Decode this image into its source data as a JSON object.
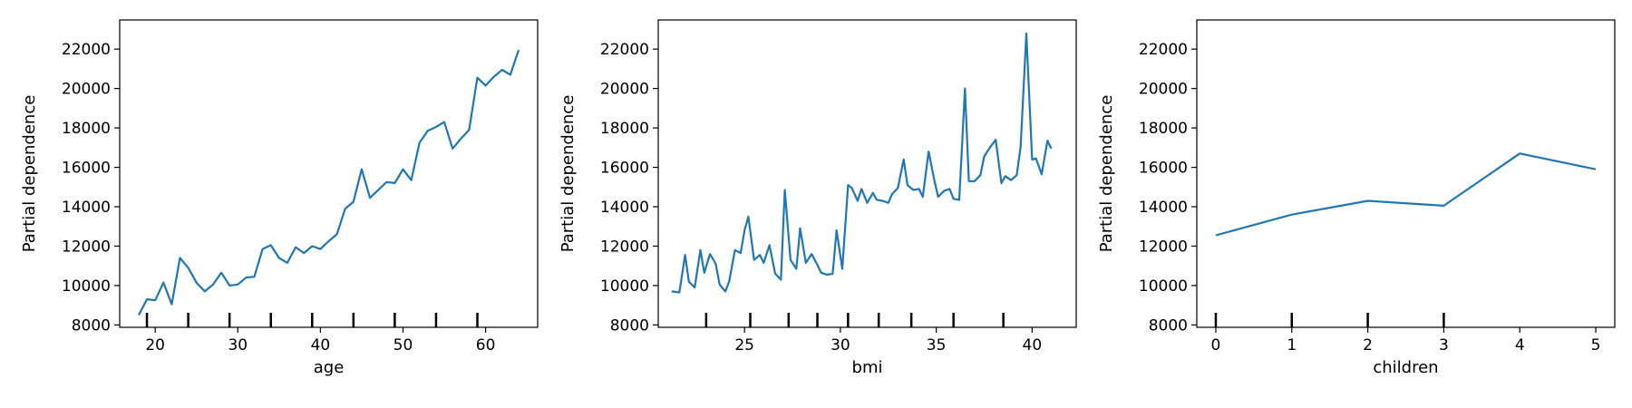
{
  "chart_data": [
    {
      "type": "line",
      "xlabel": "age",
      "ylabel": "Partial dependence",
      "xlim": [
        15.7,
        66.3
      ],
      "ylim": [
        7880,
        23480
      ],
      "xticks": [
        "20",
        "30",
        "40",
        "50",
        "60"
      ],
      "yticks": [
        "8000",
        "10000",
        "12000",
        "14000",
        "16000",
        "18000",
        "20000",
        "22000"
      ],
      "line_color": "#1f77b4",
      "deciles": [
        19,
        24,
        29,
        34,
        39,
        44,
        49,
        54,
        59
      ],
      "series": [
        {
          "x": [
            18,
            19,
            20,
            21,
            22,
            23,
            24,
            25,
            26,
            27,
            28,
            29,
            30,
            31,
            32,
            33,
            34,
            35,
            36,
            37,
            38,
            39,
            40,
            41,
            42,
            43,
            44,
            45,
            46,
            47,
            48,
            49,
            50,
            51,
            52,
            53,
            54,
            55,
            56,
            57,
            58,
            59,
            60,
            61,
            62,
            63,
            64
          ],
          "y": [
            8500,
            9300,
            9250,
            10150,
            9050,
            11400,
            10900,
            10150,
            9700,
            10050,
            10650,
            10000,
            10050,
            10400,
            10450,
            11850,
            12050,
            11400,
            11150,
            11950,
            11650,
            12000,
            11850,
            12250,
            12600,
            13900,
            14250,
            15900,
            14450,
            14850,
            15250,
            15200,
            15900,
            15350,
            17250,
            17850,
            18050,
            18300,
            16950,
            17450,
            17900,
            20550,
            20150,
            20600,
            20950,
            20700,
            21950
          ]
        }
      ]
    },
    {
      "type": "line",
      "xlabel": "bmi",
      "ylabel": "Partial dependence",
      "xlim": [
        20.5,
        42.3
      ],
      "ylim": [
        7880,
        23480
      ],
      "xticks": [
        "25",
        "30",
        "35",
        "40"
      ],
      "yticks": [
        "8000",
        "10000",
        "12000",
        "14000",
        "16000",
        "18000",
        "20000",
        "22000"
      ],
      "line_color": "#1f77b4",
      "deciles": [
        23.0,
        25.3,
        27.3,
        28.8,
        30.4,
        32.0,
        33.7,
        35.9,
        38.5
      ],
      "series": [
        {
          "x": [
            21.2,
            21.6,
            21.9,
            22.1,
            22.4,
            22.7,
            22.9,
            23.2,
            23.5,
            23.7,
            24.0,
            24.2,
            24.5,
            24.8,
            25.0,
            25.2,
            25.5,
            25.8,
            26.0,
            26.3,
            26.6,
            26.9,
            27.1,
            27.4,
            27.7,
            27.9,
            28.2,
            28.5,
            28.8,
            29.0,
            29.3,
            29.6,
            29.8,
            30.1,
            30.4,
            30.6,
            30.9,
            31.1,
            31.4,
            31.7,
            31.9,
            32.2,
            32.5,
            32.7,
            33.0,
            33.3,
            33.5,
            33.8,
            34.1,
            34.3,
            34.6,
            34.9,
            35.1,
            35.4,
            35.7,
            35.9,
            36.2,
            36.5,
            36.7,
            37.0,
            37.3,
            37.5,
            37.8,
            38.1,
            38.4,
            38.6,
            38.9,
            39.2,
            39.4,
            39.7,
            40.0,
            40.2,
            40.5,
            40.8,
            41.0
          ],
          "y": [
            9700,
            9650,
            11550,
            10200,
            9900,
            11800,
            10650,
            11600,
            11100,
            10050,
            9700,
            10200,
            11800,
            11650,
            12800,
            13500,
            11300,
            11550,
            11150,
            12050,
            10600,
            10300,
            14850,
            11300,
            10850,
            12900,
            11150,
            11600,
            11050,
            10650,
            10550,
            10600,
            12800,
            10850,
            15100,
            14950,
            14300,
            14900,
            14200,
            14700,
            14350,
            14300,
            14200,
            14650,
            14950,
            16400,
            15100,
            14850,
            14900,
            14500,
            16800,
            15350,
            14500,
            14800,
            14900,
            14400,
            14350,
            20000,
            15300,
            15300,
            15600,
            16550,
            17000,
            17400,
            15200,
            15550,
            15350,
            15600,
            17050,
            22800,
            16400,
            16450,
            15650,
            17350,
            16950
          ]
        }
      ]
    },
    {
      "type": "line",
      "xlabel": "children",
      "ylabel": "Partial dependence",
      "xlim": [
        -0.25,
        5.25
      ],
      "ylim": [
        7880,
        23480
      ],
      "xticks": [
        "0",
        "1",
        "2",
        "3",
        "4",
        "5"
      ],
      "yticks": [
        "8000",
        "10000",
        "12000",
        "14000",
        "16000",
        "18000",
        "20000",
        "22000"
      ],
      "line_color": "#1f77b4",
      "deciles": [
        0,
        1,
        2,
        3
      ],
      "series": [
        {
          "x": [
            0,
            1,
            2,
            3,
            4,
            5
          ],
          "y": [
            12550,
            13600,
            14300,
            14050,
            16700,
            15900
          ]
        }
      ]
    }
  ]
}
